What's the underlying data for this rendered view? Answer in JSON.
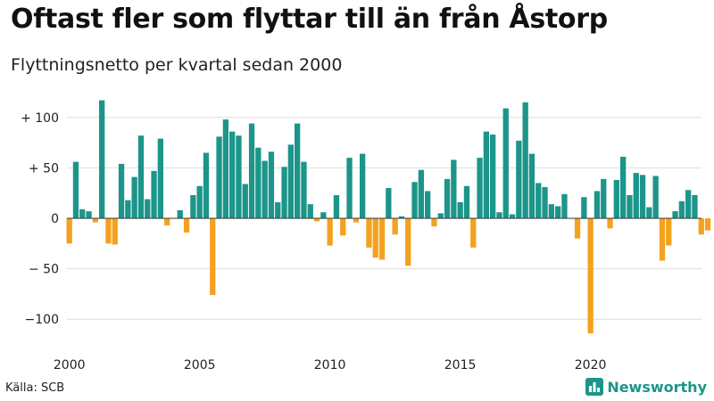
{
  "header": {
    "title": "Oftast fler som flyttar till än från Åstorp",
    "subtitle": "Flyttningsnetto per kvartal sedan 2000"
  },
  "footer": {
    "source": "Källa: SCB",
    "brand": "Newsworthy",
    "brand_icon": "bar-chart-icon"
  },
  "colors": {
    "positive": "#1c958a",
    "negative": "#f3a21f",
    "grid": "#dddddd",
    "brand": "#1c958a"
  },
  "chart_data": {
    "type": "bar",
    "title": "Oftast fler som flyttar till än från Åstorp",
    "subtitle": "Flyttningsnetto per kvartal sedan 2000",
    "xlabel": "",
    "ylabel": "",
    "ylim": [
      -120,
      115
    ],
    "y_ticks": [
      {
        "value": 100,
        "label": "+ 100"
      },
      {
        "value": 50,
        "label": "+  50"
      },
      {
        "value": 0,
        "label": "0"
      },
      {
        "value": -50,
        "label": "− 50"
      },
      {
        "value": -100,
        "label": "−100"
      }
    ],
    "x_ticks": [
      "2000",
      "2005",
      "2010",
      "2015",
      "2020"
    ],
    "x_ticks_years": [
      2000,
      2005,
      2010,
      2015,
      2020
    ],
    "grid": true,
    "legend": "none",
    "first_quarter": "2000-Q1",
    "values": [
      -25,
      56,
      9,
      7,
      -4,
      117,
      -25,
      -26,
      54,
      18,
      41,
      82,
      19,
      47,
      79,
      -7,
      0,
      8,
      -14,
      23,
      32,
      65,
      -76,
      81,
      98,
      86,
      82,
      34,
      94,
      70,
      57,
      66,
      16,
      51,
      73,
      94,
      56,
      14,
      -3,
      6,
      -27,
      23,
      -17,
      60,
      -4,
      64,
      -29,
      -39,
      -41,
      30,
      -16,
      2,
      -47,
      36,
      48,
      27,
      -8,
      5,
      39,
      58,
      16,
      32,
      -29,
      60,
      86,
      83,
      6,
      109,
      4,
      77,
      115,
      64,
      35,
      31,
      14,
      12,
      24,
      0,
      -20,
      21,
      -114,
      27,
      39,
      -10,
      38,
      61,
      23,
      45,
      43,
      11,
      42,
      -42,
      -27,
      7,
      17,
      28,
      23,
      -16,
      -12
    ]
  }
}
